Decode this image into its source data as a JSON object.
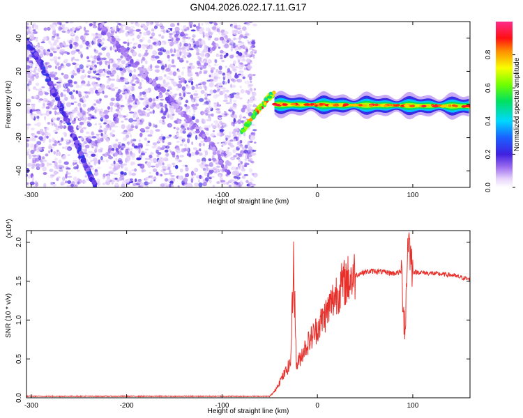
{
  "title": "GN04.2026.022.17.11.G17",
  "colors": {
    "snr_line": "#e8302b",
    "axis": "#000000",
    "background": "#ffffff"
  },
  "chart_data": [
    {
      "type": "heatmap",
      "xlabel": "Height of straight line (km)",
      "ylabel": "Frequency (Hz)",
      "xlim": [
        -305,
        160
      ],
      "ylim": [
        -50,
        50
      ],
      "xticks": [
        -300,
        -200,
        -100,
        0,
        100
      ],
      "yticks": [
        -40,
        -20,
        0,
        20,
        40
      ],
      "colorbar": {
        "label": "Normalized spectral amplitude",
        "range": [
          0,
          1
        ],
        "ticks": [
          0.0,
          0.2,
          0.4,
          0.6,
          0.8
        ],
        "colormap": "rainbow (white-violet-blue-cyan-green-yellow-red-magenta)"
      },
      "features": [
        {
          "description_key": "noise",
          "x_range": [
            -305,
            -65
          ],
          "y_range": [
            -50,
            50
          ],
          "amplitude": 0.1
        },
        {
          "description_key": "diagonal_track_1",
          "points": [
            [
              -305,
              38
            ],
            [
              -290,
              25
            ],
            [
              -270,
              0
            ],
            [
              -240,
              -40
            ],
            [
              -232,
              -50
            ]
          ],
          "amplitude": 0.2
        },
        {
          "description_key": "diagonal_track_2",
          "points": [
            [
              -230,
              48
            ],
            [
              -200,
              30
            ],
            [
              -150,
              0
            ],
            [
              -110,
              -25
            ],
            [
              -90,
              -45
            ]
          ],
          "amplitude": 0.12
        },
        {
          "description_key": "rising_branch",
          "points": [
            [
              -80,
              -18
            ],
            [
              -65,
              -5
            ],
            [
              -50,
              5
            ],
            [
              -45,
              7
            ]
          ],
          "amplitude": 0.7
        },
        {
          "description_key": "carrier",
          "points": [
            [
              -45,
              0
            ],
            [
              160,
              -1
            ]
          ],
          "amplitude": 0.85
        }
      ]
    },
    {
      "type": "line",
      "xlabel": "Height of straight line (km)",
      "ylabel": "SNR (10 * v/v)",
      "y_multiplier_label": "(x10⁴)",
      "xlim": [
        -305,
        160
      ],
      "ylim": [
        0,
        2.15
      ],
      "xticks": [
        -300,
        -200,
        -100,
        0,
        100
      ],
      "yticks": [
        0.0,
        0.5,
        1.0,
        1.5,
        2.0
      ],
      "ytick_labels": [
        "0.0",
        "0.5",
        "1.0",
        "1.5",
        "2.0"
      ],
      "series_shape": [
        [
          -305,
          0.02
        ],
        [
          -50,
          0.02
        ],
        [
          -45,
          0.08
        ],
        [
          -40,
          0.2
        ],
        [
          -35,
          0.3
        ],
        [
          -28,
          0.45
        ],
        [
          -25,
          1.8
        ],
        [
          -22,
          0.4
        ],
        [
          -15,
          0.6
        ],
        [
          -10,
          0.7
        ],
        [
          -5,
          0.8
        ],
        [
          0,
          0.9
        ],
        [
          10,
          1.1
        ],
        [
          20,
          1.35
        ],
        [
          30,
          1.5
        ],
        [
          40,
          1.58
        ],
        [
          50,
          1.62
        ],
        [
          60,
          1.63
        ],
        [
          80,
          1.6
        ],
        [
          88,
          1.62
        ],
        [
          92,
          0.85
        ],
        [
          95,
          2.1
        ],
        [
          100,
          1.62
        ],
        [
          120,
          1.6
        ],
        [
          140,
          1.58
        ],
        [
          160,
          1.52
        ]
      ]
    }
  ]
}
